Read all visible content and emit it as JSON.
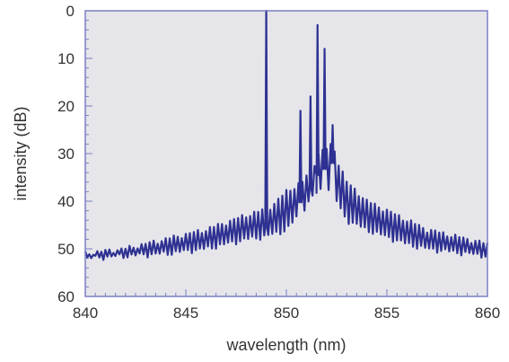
{
  "chart_data": {
    "type": "line",
    "title": "",
    "xlabel": "wavelength (nm)",
    "ylabel": "intensity (dB)",
    "xlim": [
      840,
      860
    ],
    "ylim": [
      0,
      60
    ],
    "y_inverted": true,
    "x_ticks": [
      840,
      845,
      850,
      855,
      860
    ],
    "y_ticks": [
      0,
      10,
      20,
      30,
      40,
      50,
      60
    ],
    "x_tick_labels": [
      "840",
      "845",
      "850",
      "855",
      "860"
    ],
    "y_tick_labels": [
      "0",
      "10",
      "20",
      "30",
      "40",
      "50",
      "60"
    ],
    "x_minor_step": 0.5,
    "y_minor_step": 2,
    "grid": false,
    "colors": {
      "line": "#2e3192",
      "plot_background": "#e6e6ea",
      "frame": "#7b7fc4",
      "axis_text": "#333333"
    },
    "series": [
      {
        "envelope_x": [
          840,
          842,
          844,
          846,
          847,
          848,
          848.8,
          849.3,
          850,
          850.8,
          851.3,
          851.6,
          852,
          852.3,
          852.6,
          853,
          854,
          855,
          856,
          857,
          858,
          859,
          860
        ],
        "envelope_upper": [
          51,
          50,
          48,
          46,
          44.5,
          43,
          42,
          41,
          38,
          36,
          33,
          30,
          29,
          28,
          32,
          36,
          40,
          42,
          44,
          46,
          47,
          48,
          49
        ],
        "envelope_lower": [
          52,
          51.5,
          51,
          50,
          49,
          48,
          47.5,
          47,
          46,
          42,
          39,
          38,
          37,
          38,
          41,
          44,
          46,
          47.5,
          49,
          50,
          50.5,
          51,
          51.5
        ],
        "ripple_period_nm": 0.2,
        "peaks": [
          {
            "x": 849.0,
            "y": 0
          },
          {
            "x": 850.7,
            "y": 21
          },
          {
            "x": 851.2,
            "y": 18
          },
          {
            "x": 851.55,
            "y": 3
          },
          {
            "x": 851.9,
            "y": 8
          },
          {
            "x": 852.3,
            "y": 24
          }
        ]
      }
    ]
  }
}
